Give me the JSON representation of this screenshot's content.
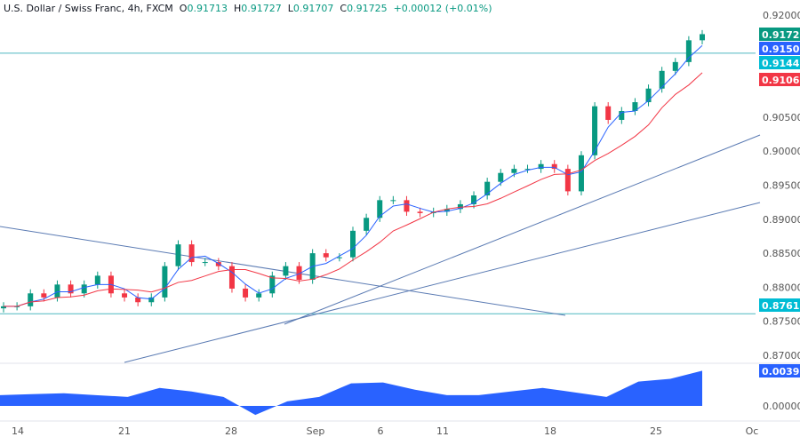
{
  "header": {
    "symbol": "U.S. Dollar / Swiss Franc, 4h, FXCM",
    "open_label": "O",
    "open": "0.91713",
    "high_label": "H",
    "high": "0.91727",
    "low_label": "L",
    "low": "0.91707",
    "close_label": "C",
    "close": "0.91725",
    "change": "+0.00012 (+0.01%)"
  },
  "chart_data": {
    "type": "candlestick",
    "ylim": [
      0.8665,
      0.9225
    ],
    "price_ticks": [
      "0.92000",
      "0.90500",
      "0.90000",
      "0.89500",
      "0.89000",
      "0.88500",
      "0.88000",
      "0.87500",
      "0.87000"
    ],
    "x_ticks": [
      "14",
      "21",
      "28",
      "Sep",
      "6",
      "11",
      "18",
      "25",
      "Oc"
    ],
    "closes": [
      0.8772,
      0.8772,
      0.8791,
      0.8785,
      0.8804,
      0.8791,
      0.8804,
      0.8817,
      0.8791,
      0.8785,
      0.8778,
      0.8785,
      0.8831,
      0.8863,
      0.8837,
      0.8837,
      0.8831,
      0.8798,
      0.8785,
      0.8791,
      0.8817,
      0.8831,
      0.8811,
      0.885,
      0.8844,
      0.8844,
      0.8883,
      0.8902,
      0.8928,
      0.8928,
      0.8911,
      0.8909,
      0.8911,
      0.8915,
      0.8922,
      0.8935,
      0.8955,
      0.8968,
      0.8974,
      0.8974,
      0.8981,
      0.8974,
      0.8941,
      0.8994,
      0.9066,
      0.9046,
      0.9059,
      0.9072,
      0.9092,
      0.9118,
      0.9131,
      0.9163,
      0.9172
    ],
    "horizontal_levels": [
      0.91441,
      0.87611
    ],
    "price_labels": [
      {
        "text": "0.91725",
        "color": "#089981"
      },
      {
        "text": "0.91503",
        "color": "#2962ff"
      },
      {
        "text": "0.91441",
        "color": "#00bcd4"
      },
      {
        "text": "0.91067",
        "color": "#f23645"
      },
      {
        "text": "0.87611",
        "color": "#00bcd4"
      }
    ],
    "indicator": {
      "values": [
        0.0012,
        0.0013,
        0.0014,
        0.0012,
        0.001,
        0.002,
        0.0016,
        0.001,
        -0.001,
        0.0005,
        0.001,
        0.0025,
        0.0026,
        0.0018,
        0.0012,
        0.0012,
        0.0016,
        0.002,
        0.0015,
        0.001,
        0.0027,
        0.003,
        0.0039
      ],
      "ticks": [
        "0.00000"
      ],
      "label": "0.00394",
      "color": "#2962ff"
    },
    "colors": {
      "up": "#089981",
      "down": "#f23645",
      "ma_fast": "#2962ff",
      "ma_slow": "#f23645",
      "trendline": "#5b7bb3",
      "level": "#4fb8c0"
    }
  }
}
